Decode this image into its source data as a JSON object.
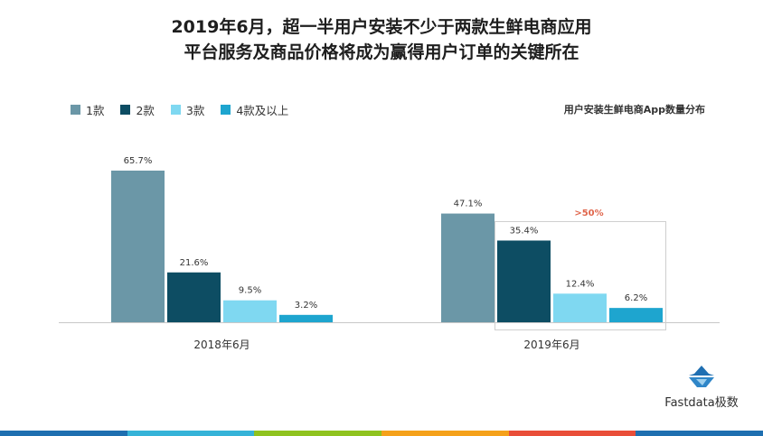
{
  "title_line1": "2019年6月，超一半用户安装不少于两款生鲜电商应用",
  "title_line2": "平台服务及商品价格将成为赢得用户订单的关键所在",
  "subtitle": "用户安装生鲜电商App数量分布",
  "annotation": ">50%",
  "colors": {
    "series1": "#6b97a7",
    "series2": "#0d4d63",
    "series3": "#7fd8f1",
    "series4": "#1ea5cf",
    "annotation": "#e0664c"
  },
  "chart_data": {
    "type": "bar",
    "categories": [
      "2018年6月",
      "2019年6月"
    ],
    "series": [
      {
        "name": "1款",
        "values": [
          65.7,
          47.1
        ],
        "labels": [
          "65.7%",
          "47.1%"
        ]
      },
      {
        "name": "2款",
        "values": [
          21.6,
          35.4
        ],
        "labels": [
          "21.6%",
          "35.4%"
        ]
      },
      {
        "name": "3款",
        "values": [
          9.5,
          12.4
        ],
        "labels": [
          "9.5%",
          "12.4%"
        ]
      },
      {
        "name": "4款及以上",
        "values": [
          3.2,
          6.2
        ],
        "labels": [
          "3.2%",
          "6.2%"
        ]
      }
    ],
    "ylim": [
      0,
      65.7
    ],
    "grid": false,
    "legend_position": "top-left"
  },
  "logo": {
    "text": "Fastdata极数",
    "icon": "iceberg-logo-icon"
  }
}
